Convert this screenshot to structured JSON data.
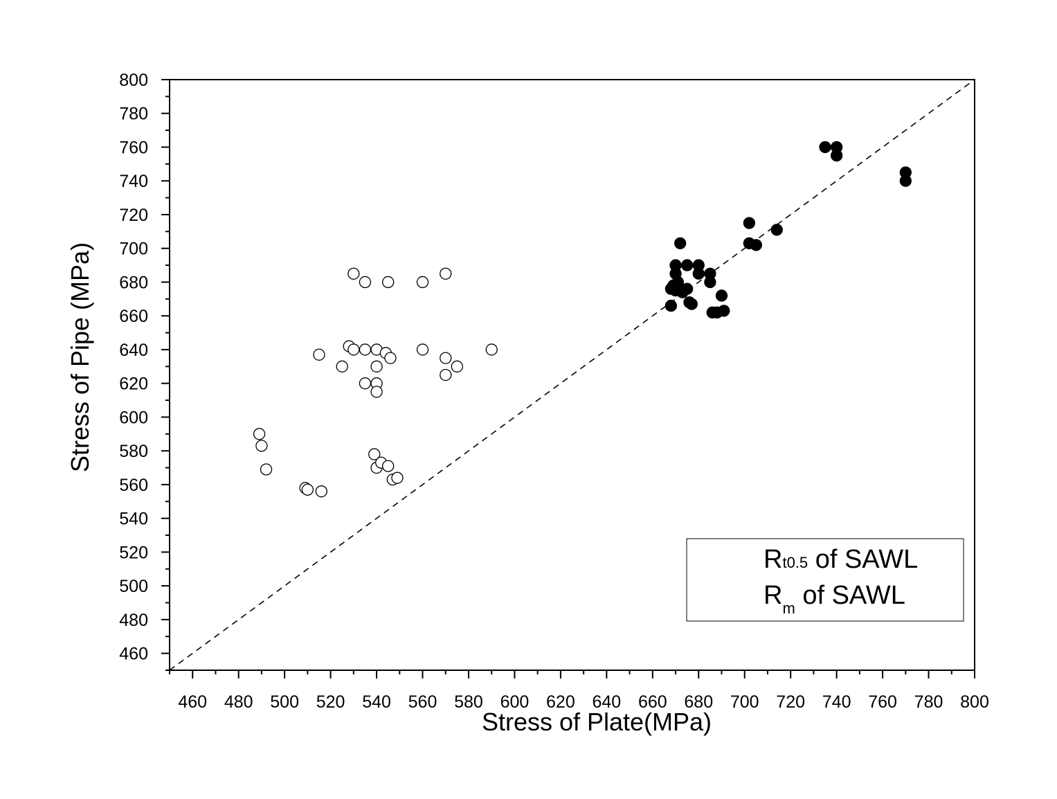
{
  "chart_data": {
    "type": "scatter",
    "title": "",
    "xlabel": "Stress of Plate(MPa)",
    "ylabel": "Stress of Pipe (MPa)",
    "xlim": [
      450,
      800
    ],
    "ylim": [
      450,
      800
    ],
    "x_ticks": [
      460,
      480,
      500,
      520,
      540,
      560,
      580,
      600,
      620,
      640,
      660,
      680,
      700,
      720,
      740,
      760,
      780,
      800
    ],
    "y_ticks": [
      460,
      480,
      500,
      520,
      540,
      560,
      580,
      600,
      620,
      640,
      660,
      680,
      700,
      720,
      740,
      760,
      780,
      800
    ],
    "grid": false,
    "legend_position": "bottom-right",
    "legend": {
      "rt_main": "R",
      "rt_sub": "t0.5",
      "rt_rest": " of SAWL",
      "rm_main": "R",
      "rm_sub": "m",
      "rm_rest": " of SAWL"
    },
    "reference_line": {
      "style": "dashed",
      "from": [
        450,
        450
      ],
      "to": [
        800,
        800
      ]
    },
    "series": [
      {
        "marker": "open-circle",
        "points": [
          [
            489,
            590
          ],
          [
            490,
            583
          ],
          [
            492,
            569
          ],
          [
            509,
            558
          ],
          [
            510,
            557
          ],
          [
            516,
            556
          ],
          [
            515,
            637
          ],
          [
            525,
            630
          ],
          [
            528,
            642
          ],
          [
            530,
            640
          ],
          [
            535,
            640
          ],
          [
            540,
            640
          ],
          [
            544,
            638
          ],
          [
            546,
            635
          ],
          [
            535,
            620
          ],
          [
            540,
            620
          ],
          [
            540,
            630
          ],
          [
            540,
            615
          ],
          [
            530,
            685
          ],
          [
            535,
            680
          ],
          [
            545,
            680
          ],
          [
            560,
            680
          ],
          [
            570,
            685
          ],
          [
            560,
            640
          ],
          [
            570,
            635
          ],
          [
            575,
            630
          ],
          [
            570,
            625
          ],
          [
            590,
            640
          ],
          [
            539,
            578
          ],
          [
            540,
            570
          ],
          [
            542,
            573
          ],
          [
            545,
            571
          ],
          [
            547,
            563
          ],
          [
            549,
            564
          ]
        ]
      },
      {
        "marker": "filled-circle",
        "points": [
          [
            668,
            666
          ],
          [
            668,
            676
          ],
          [
            669,
            678
          ],
          [
            670,
            675
          ],
          [
            670,
            685
          ],
          [
            670,
            690
          ],
          [
            671,
            680
          ],
          [
            672,
            703
          ],
          [
            673,
            674
          ],
          [
            675,
            690
          ],
          [
            675,
            676
          ],
          [
            676,
            668
          ],
          [
            677,
            667
          ],
          [
            680,
            690
          ],
          [
            680,
            685
          ],
          [
            685,
            685
          ],
          [
            685,
            680
          ],
          [
            686,
            662
          ],
          [
            688,
            662
          ],
          [
            690,
            672
          ],
          [
            691,
            663
          ],
          [
            702,
            715
          ],
          [
            702,
            703
          ],
          [
            705,
            702
          ],
          [
            714,
            711
          ],
          [
            735,
            760
          ],
          [
            740,
            760
          ],
          [
            740,
            755
          ],
          [
            770,
            745
          ],
          [
            770,
            740
          ]
        ]
      }
    ]
  }
}
